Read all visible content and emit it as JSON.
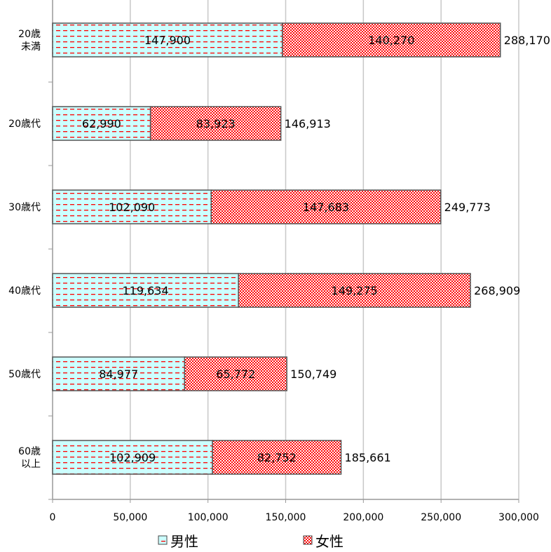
{
  "chart_data": {
    "type": "bar",
    "orientation": "horizontal",
    "stacked": true,
    "categories": [
      [
        "20歳",
        "未満"
      ],
      [
        "20歳代"
      ],
      [
        "30歳代"
      ],
      [
        "40歳代"
      ],
      [
        "50歳代"
      ],
      [
        "60歳",
        "以上"
      ]
    ],
    "series": [
      {
        "name": "男性",
        "values": [
          147900,
          62990,
          102090,
          119634,
          84977,
          102909
        ],
        "labels": [
          "147,900",
          "62,990",
          "102,090",
          "119,634",
          "84,977",
          "102,909"
        ],
        "color": "#ff0000",
        "background": "#ccffff"
      },
      {
        "name": "女性",
        "values": [
          140270,
          83923,
          147683,
          149275,
          65772,
          82752
        ],
        "labels": [
          "140,270",
          "83,923",
          "147,683",
          "149,275",
          "65,772",
          "82,752"
        ],
        "color": "#ff0000",
        "background": "#ffffff"
      }
    ],
    "totals": [
      "288,170",
      "146,913",
      "249,773",
      "268,909",
      "150,749",
      "185,661"
    ],
    "xlim": [
      0,
      300000
    ],
    "xticks": [
      0,
      50000,
      100000,
      150000,
      200000,
      250000,
      300000
    ],
    "xtick_labels": [
      "0",
      "50,000",
      "100,000",
      "150,000",
      "200,000",
      "250,000",
      "300,000"
    ],
    "grid": true,
    "legend_position": "bottom"
  }
}
